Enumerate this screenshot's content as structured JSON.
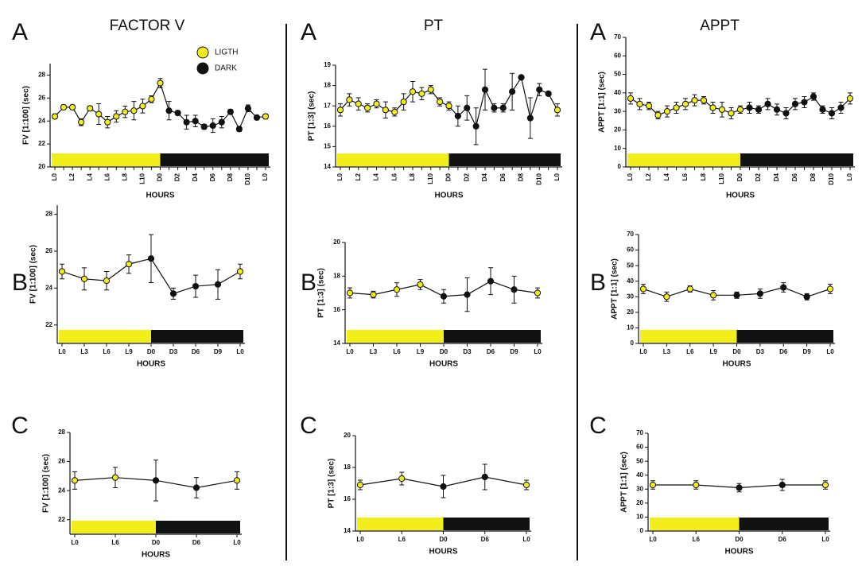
{
  "legend": {
    "items": [
      {
        "name": "LIGTH",
        "color": "#f2ee1a"
      },
      {
        "name": "DARK",
        "color": "#111111"
      }
    ]
  },
  "chart_data": [
    {
      "type": "line",
      "panel": "A",
      "title": "FACTOR V",
      "ylabel": "FV [1:100] (sec)",
      "xlabel": "HOURS",
      "categories": [
        "L0",
        null,
        "L2",
        null,
        "L4",
        null,
        "L6",
        null,
        "L8",
        null,
        "L10",
        null,
        "D0",
        null,
        "D2",
        null,
        "D4",
        null,
        "D6",
        null,
        "D8",
        null,
        "D10",
        null,
        "L0"
      ],
      "series": [
        {
          "values": [
            24.4,
            25.2,
            25.2,
            23.9,
            25.1,
            24.6,
            23.9,
            24.4,
            24.8,
            24.9,
            25.3,
            25.9,
            27.3,
            24.9,
            24.7,
            23.9,
            24.0,
            23.5,
            23.6,
            23.9,
            24.8,
            23.3,
            25.1,
            24.3,
            24.4
          ],
          "errors": [
            0.2,
            0.2,
            0.2,
            0.3,
            0.2,
            0.9,
            0.5,
            0.5,
            0.5,
            0.8,
            0.6,
            0.3,
            0.4,
            0.8,
            0.2,
            0.6,
            0.5,
            0.2,
            0.6,
            0.5,
            0.2,
            0.2,
            0.3,
            0.2,
            0.2
          ],
          "colors": [
            "#f2ee1a",
            "#f2ee1a",
            "#f2ee1a",
            "#f2ee1a",
            "#f2ee1a",
            "#f2ee1a",
            "#f2ee1a",
            "#f2ee1a",
            "#f2ee1a",
            "#f2ee1a",
            "#f2ee1a",
            "#f2ee1a",
            "#f2ee1a",
            "#111111",
            "#111111",
            "#111111",
            "#111111",
            "#111111",
            "#111111",
            "#111111",
            "#111111",
            "#111111",
            "#111111",
            "#111111",
            "#f2ee1a"
          ]
        }
      ],
      "ylim": [
        20,
        29
      ],
      "yticks": [
        20,
        22,
        24,
        26,
        28
      ]
    },
    {
      "type": "line",
      "panel": "A",
      "title": "PT",
      "ylabel": "PT [1:3] (sec)",
      "xlabel": "HOURS",
      "categories": [
        "L0",
        null,
        "L2",
        null,
        "L4",
        null,
        "L6",
        null,
        "L8",
        null,
        "L10",
        null,
        "D0",
        null,
        "D2",
        null,
        "D4",
        null,
        "D6",
        null,
        "D8",
        null,
        "D10",
        null,
        "L0"
      ],
      "series": [
        {
          "values": [
            16.8,
            17.3,
            17.1,
            16.9,
            17.1,
            16.8,
            16.7,
            17.2,
            17.7,
            17.6,
            17.8,
            17.2,
            17.0,
            16.5,
            16.9,
            16.0,
            17.8,
            16.9,
            16.9,
            17.7,
            18.4,
            16.4,
            17.8,
            17.6,
            16.8
          ],
          "errors": [
            0.3,
            0.3,
            0.3,
            0.2,
            0.2,
            0.4,
            0.2,
            0.4,
            0.5,
            0.3,
            0.2,
            0.2,
            0.2,
            0.5,
            0.6,
            0.9,
            1.0,
            0.2,
            0.2,
            0.9,
            0.1,
            1.0,
            0.3,
            0.1,
            0.3
          ],
          "colors": [
            "#f2ee1a",
            "#f2ee1a",
            "#f2ee1a",
            "#f2ee1a",
            "#f2ee1a",
            "#f2ee1a",
            "#f2ee1a",
            "#f2ee1a",
            "#f2ee1a",
            "#f2ee1a",
            "#f2ee1a",
            "#f2ee1a",
            "#f2ee1a",
            "#111111",
            "#111111",
            "#111111",
            "#111111",
            "#111111",
            "#111111",
            "#111111",
            "#111111",
            "#111111",
            "#111111",
            "#111111",
            "#f2ee1a"
          ]
        }
      ],
      "ylim": [
        14,
        19
      ],
      "yticks": [
        14,
        15,
        16,
        17,
        18,
        19
      ]
    },
    {
      "type": "line",
      "panel": "A",
      "title": "APPT",
      "ylabel": "APPT [1:1] (sec)",
      "xlabel": "HOURS",
      "categories": [
        "L0",
        null,
        "L2",
        null,
        "L4",
        null,
        "L6",
        null,
        "L8",
        null,
        "L10",
        null,
        "D0",
        null,
        "D2",
        null,
        "D4",
        null,
        "D6",
        null,
        "D8",
        null,
        "D10",
        null,
        "L0"
      ],
      "series": [
        {
          "values": [
            37,
            34,
            33,
            28,
            30,
            32,
            34,
            36,
            36,
            32,
            31,
            29,
            31,
            32,
            31,
            34,
            31,
            29,
            34,
            35,
            38,
            31,
            29,
            32,
            37
          ],
          "errors": [
            3,
            3,
            2,
            2,
            3,
            3,
            3,
            3,
            2,
            3,
            4,
            3,
            2,
            3,
            2,
            3,
            3,
            3,
            3,
            3,
            2,
            2,
            3,
            3,
            3
          ],
          "colors": [
            "#f2ee1a",
            "#f2ee1a",
            "#f2ee1a",
            "#f2ee1a",
            "#f2ee1a",
            "#f2ee1a",
            "#f2ee1a",
            "#f2ee1a",
            "#f2ee1a",
            "#f2ee1a",
            "#f2ee1a",
            "#f2ee1a",
            "#f2ee1a",
            "#111111",
            "#111111",
            "#111111",
            "#111111",
            "#111111",
            "#111111",
            "#111111",
            "#111111",
            "#111111",
            "#111111",
            "#111111",
            "#f2ee1a"
          ]
        }
      ],
      "ylim": [
        0,
        70
      ],
      "yticks": [
        0,
        10,
        20,
        30,
        40,
        50,
        60,
        70
      ]
    },
    {
      "type": "line",
      "panel": "B",
      "ylabel": "FV [1:100] (sec)",
      "xlabel": "HOURS",
      "categories": [
        "L0",
        "L3",
        "L6",
        "L9",
        "D0",
        "D3",
        "D6",
        "D9",
        "L0"
      ],
      "series": [
        {
          "values": [
            24.9,
            24.5,
            24.4,
            25.3,
            25.6,
            23.7,
            24.1,
            24.2,
            24.9
          ],
          "errors": [
            0.4,
            0.6,
            0.5,
            0.5,
            1.3,
            0.3,
            0.6,
            0.8,
            0.4
          ],
          "colors": [
            "#f2ee1a",
            "#f2ee1a",
            "#f2ee1a",
            "#f2ee1a",
            "#111111",
            "#111111",
            "#111111",
            "#111111",
            "#f2ee1a"
          ]
        }
      ],
      "ylim": [
        21,
        28.5
      ],
      "yticks": [
        22,
        24,
        26,
        28
      ]
    },
    {
      "type": "line",
      "panel": "B",
      "ylabel": "PT [1:3] (sec)",
      "xlabel": "HOURS",
      "categories": [
        "L0",
        "L3",
        "L6",
        "L9",
        "D0",
        "D3",
        "D6",
        "D9",
        "L0"
      ],
      "series": [
        {
          "values": [
            17.0,
            16.9,
            17.2,
            17.5,
            16.8,
            16.9,
            17.7,
            17.2,
            17.0
          ],
          "errors": [
            0.3,
            0.2,
            0.4,
            0.3,
            0.4,
            1.0,
            0.8,
            0.8,
            0.3
          ],
          "colors": [
            "#f2ee1a",
            "#f2ee1a",
            "#f2ee1a",
            "#f2ee1a",
            "#111111",
            "#111111",
            "#111111",
            "#111111",
            "#f2ee1a"
          ]
        }
      ],
      "ylim": [
        14,
        20
      ],
      "yticks": [
        14,
        16,
        18,
        20
      ]
    },
    {
      "type": "line",
      "panel": "B",
      "ylabel": "APPT [1:1] (sec)",
      "xlabel": "HOURS",
      "categories": [
        "L0",
        "L3",
        "L6",
        "L9",
        "D0",
        "D3",
        "D6",
        "D9",
        "L0"
      ],
      "series": [
        {
          "values": [
            35,
            30,
            35,
            31,
            31,
            32,
            36,
            30,
            35
          ],
          "errors": [
            3,
            3,
            2,
            3,
            2,
            3,
            3,
            2,
            3
          ],
          "colors": [
            "#f2ee1a",
            "#f2ee1a",
            "#f2ee1a",
            "#f2ee1a",
            "#111111",
            "#111111",
            "#111111",
            "#111111",
            "#f2ee1a"
          ]
        }
      ],
      "ylim": [
        0,
        70
      ],
      "yticks": [
        0,
        10,
        20,
        30,
        40,
        50,
        60,
        70
      ]
    },
    {
      "type": "line",
      "panel": "C",
      "ylabel": "FV [1:100] (sec)",
      "xlabel": "HOURS",
      "categories": [
        "L0",
        "L6",
        "D0",
        "D6",
        "L0"
      ],
      "series": [
        {
          "values": [
            24.7,
            24.9,
            24.7,
            24.2,
            24.7
          ],
          "errors": [
            0.6,
            0.7,
            1.4,
            0.7,
            0.6
          ],
          "colors": [
            "#f2ee1a",
            "#f2ee1a",
            "#111111",
            "#111111",
            "#f2ee1a"
          ]
        }
      ],
      "ylim": [
        21,
        28
      ],
      "yticks": [
        22,
        24,
        26,
        28
      ]
    },
    {
      "type": "line",
      "panel": "C",
      "ylabel": "PT [1:3] (sec)",
      "xlabel": "HOURS",
      "categories": [
        "L0",
        "L6",
        "D0",
        "D6",
        "L0"
      ],
      "series": [
        {
          "values": [
            16.9,
            17.3,
            16.8,
            17.4,
            16.9
          ],
          "errors": [
            0.3,
            0.4,
            0.7,
            0.8,
            0.3
          ],
          "colors": [
            "#f2ee1a",
            "#f2ee1a",
            "#111111",
            "#111111",
            "#f2ee1a"
          ]
        }
      ],
      "ylim": [
        14,
        20
      ],
      "yticks": [
        14,
        16,
        18,
        20
      ]
    },
    {
      "type": "line",
      "panel": "C",
      "ylabel": "APPT [1:1] (sec)",
      "xlabel": "HOURS",
      "categories": [
        "L0",
        "L6",
        "D0",
        "D6",
        "L0"
      ],
      "series": [
        {
          "values": [
            33,
            33,
            31,
            33,
            33
          ],
          "errors": [
            3,
            3,
            3,
            4,
            3
          ],
          "colors": [
            "#f2ee1a",
            "#f2ee1a",
            "#111111",
            "#111111",
            "#f2ee1a"
          ]
        }
      ],
      "ylim": [
        0,
        70
      ],
      "yticks": [
        0,
        10,
        20,
        30,
        40,
        50,
        60,
        70
      ]
    }
  ]
}
